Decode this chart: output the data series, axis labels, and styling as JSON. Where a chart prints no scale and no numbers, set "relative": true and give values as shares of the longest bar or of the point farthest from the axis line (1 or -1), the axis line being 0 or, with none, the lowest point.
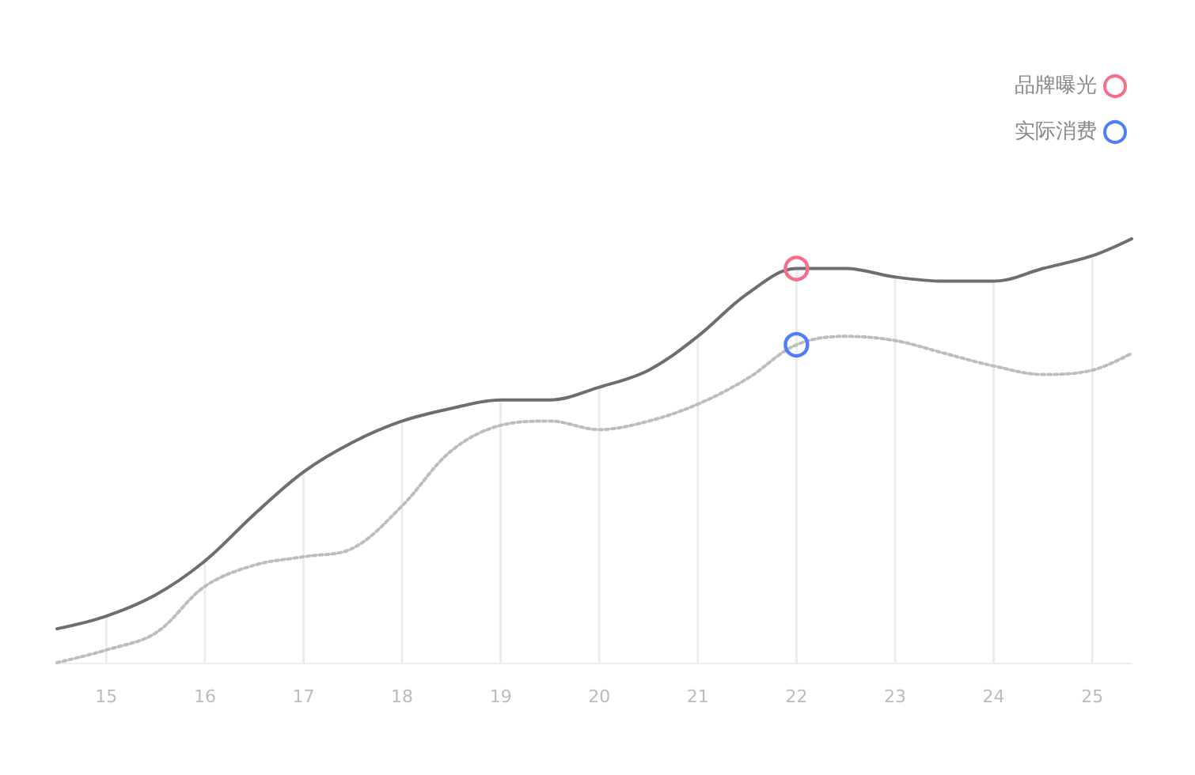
{
  "chart_data": {
    "type": "line",
    "relative": true,
    "legend": "top right",
    "xlim": [
      14.5,
      25.4
    ],
    "xticks": [
      15,
      16,
      17,
      18,
      19,
      20,
      21,
      22,
      23,
      24,
      25
    ],
    "series": [
      {
        "type": "bar",
        "color": "#ececec",
        "x": [
          15,
          16,
          17,
          18,
          19,
          20,
          21,
          22,
          23,
          24,
          25
        ],
        "values": [
          0.11,
          0.24,
          0.45,
          0.57,
          0.62,
          0.65,
          0.77,
          0.93,
          0.91,
          0.9,
          0.96
        ]
      },
      {
        "color": "#6e6e6e",
        "line_style": "solid",
        "marker": "none",
        "x": [
          14.5,
          15,
          15.5,
          16,
          16.5,
          17,
          17.5,
          18,
          18.5,
          19,
          19.5,
          20,
          20.5,
          21,
          21.5,
          22,
          22.5,
          23,
          23.5,
          24,
          24.5,
          25,
          25.4
        ],
        "values": [
          0.08,
          0.11,
          0.16,
          0.24,
          0.35,
          0.45,
          0.52,
          0.57,
          0.6,
          0.62,
          0.62,
          0.65,
          0.69,
          0.77,
          0.87,
          0.93,
          0.93,
          0.91,
          0.9,
          0.9,
          0.93,
          0.96,
          1.0
        ]
      },
      {
        "color": "#bdbdbd",
        "line_style": "dotted",
        "marker": "none",
        "x": [
          14.5,
          15,
          15.5,
          16,
          16.5,
          17,
          17.5,
          18,
          18.5,
          19,
          19.5,
          20,
          20.5,
          21,
          21.5,
          22,
          22.5,
          23,
          23.5,
          24,
          24.5,
          25,
          25.4
        ],
        "values": [
          0.0,
          0.03,
          0.07,
          0.18,
          0.23,
          0.25,
          0.27,
          0.37,
          0.5,
          0.56,
          0.57,
          0.55,
          0.57,
          0.61,
          0.67,
          0.75,
          0.77,
          0.76,
          0.73,
          0.7,
          0.68,
          0.69,
          0.73
        ]
      },
      {
        "type": "scatter",
        "name": "品牌曝光",
        "color": "#f76e87",
        "marker": "circle",
        "x": [
          22
        ],
        "values": [
          0.93
        ]
      },
      {
        "type": "scatter",
        "name": "实际消费",
        "color": "#4e7ff7",
        "marker": "circle",
        "x": [
          22
        ],
        "values": [
          0.75
        ]
      }
    ]
  }
}
